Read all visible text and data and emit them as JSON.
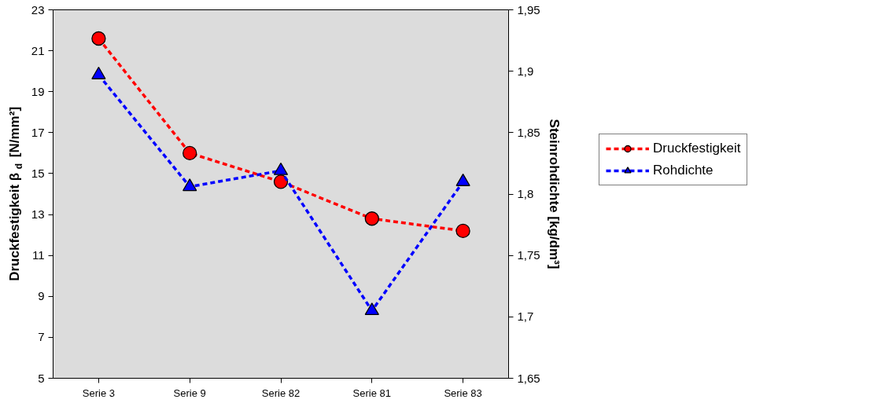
{
  "chart_data": {
    "type": "line",
    "ylabel": "Druckfestigkeit β$_{d}$ [N/mm²]",
    "y2label": "Steinrohdichte [kg/dm³]",
    "categories": [
      "Serie 3",
      "Serie 9",
      "Serie 82",
      "Serie 81",
      "Serie 83"
    ],
    "series": [
      {
        "name": "Druckfestigkeit",
        "color": "#ff0000",
        "marker": "circle",
        "values": [
          21.6,
          16.0,
          14.6,
          12.8,
          12.2
        ]
      },
      {
        "name": "Rohdichte",
        "color": "#0000ff",
        "marker": "triangle",
        "axis": "y2",
        "values": [
          1.897,
          1.806,
          1.819,
          1.705,
          1.81
        ]
      }
    ],
    "ylim": [
      5,
      23
    ],
    "yticks": [
      5,
      7,
      9,
      11,
      13,
      15,
      17,
      19,
      21,
      23
    ],
    "y2lim": [
      1.65,
      1.95
    ],
    "y2ticks": [
      {
        "value": 1.65,
        "label": "1,65"
      },
      {
        "value": 1.7,
        "label": "1,7"
      },
      {
        "value": 1.75,
        "label": "1,75"
      },
      {
        "value": 1.8,
        "label": "1,8"
      },
      {
        "value": 1.85,
        "label": "1,85"
      },
      {
        "value": 1.9,
        "label": "1,9"
      },
      {
        "value": 1.95,
        "label": "1,95"
      }
    ],
    "line_style": "dashed",
    "grid": false,
    "legend": "right"
  }
}
